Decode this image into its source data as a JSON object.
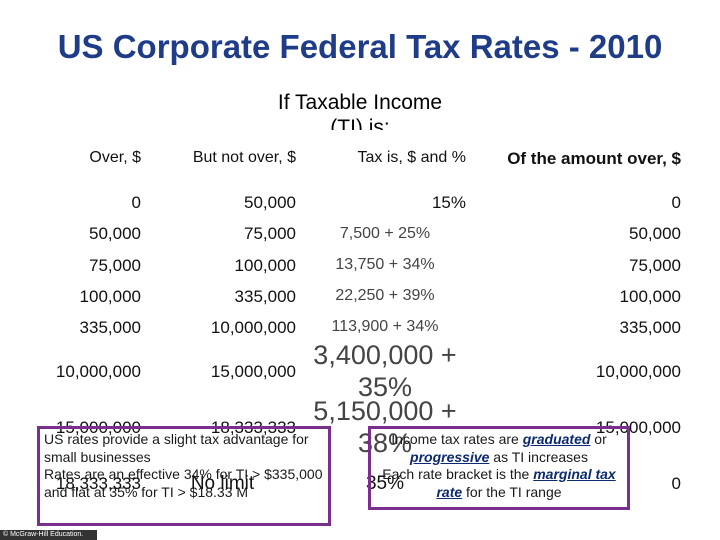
{
  "title": "US Corporate Federal Tax Rates - 2010",
  "table": {
    "caption": "If Taxable Income (TI) is:",
    "header": [
      "Over, $",
      "But not over, $",
      "Tax is, $ and %",
      "Of the amount over, $"
    ],
    "rows": [
      [
        "0",
        "50,000",
        "15%",
        "0"
      ],
      [
        "50,000",
        "75,000",
        "7,500 + 25%",
        "50,000"
      ],
      [
        "75,000",
        "100,000",
        "13,750 + 34%",
        "75,000"
      ],
      [
        "100,000",
        "335,000",
        "22,250 + 39%",
        "100,000"
      ],
      [
        "335,000",
        "10,000,000",
        "113,900 + 34%",
        "335,000"
      ],
      [
        "10,000,000",
        "15,000,000",
        "3,400,000 + 35%",
        "10,000,000"
      ],
      [
        "15,000,000",
        "18,333,333",
        "5,150,000 + 38%",
        "15,000,000"
      ],
      [
        "18,333,333",
        "No limit",
        "35%",
        "0"
      ]
    ]
  },
  "notes_left": [
    "US rates provide a slight tax advantage for small businesses",
    "Rates are an effective 34% for TI > $335,000 and flat at 35% for TI > $18.33 M"
  ],
  "notes_right": [
    [
      "Income tax rates are ",
      "graduated",
      " or ",
      "progressive",
      " as TI increases"
    ],
    [
      "Each rate bracket is the ",
      "marginal tax rate",
      " for the TI range"
    ]
  ],
  "footer": "© McGraw-Hill Education."
}
